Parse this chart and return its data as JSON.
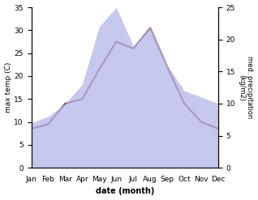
{
  "months": [
    "Jan",
    "Feb",
    "Mar",
    "Apr",
    "May",
    "Jun",
    "Jul",
    "Aug",
    "Sep",
    "Oct",
    "Nov",
    "Dec"
  ],
  "temp_max": [
    8.5,
    9.5,
    14.0,
    15.0,
    21.5,
    27.5,
    26.0,
    30.5,
    22.0,
    14.0,
    10.0,
    8.5
  ],
  "precipitation": [
    7.0,
    8.0,
    10.0,
    13.0,
    22.0,
    25.0,
    19.0,
    22.0,
    16.0,
    12.0,
    11.0,
    10.0
  ],
  "temp_color": "#993344",
  "precip_fill_color": "#b0b8e8",
  "precip_fill_alpha": 0.75,
  "xlabel": "date (month)",
  "ylabel_left": "max temp (C)",
  "ylabel_right": "med. precipitation\n(kg/m2)",
  "ylim_left": [
    0,
    35
  ],
  "ylim_right": [
    0,
    25
  ],
  "yticks_left": [
    0,
    5,
    10,
    15,
    20,
    25,
    30,
    35
  ],
  "yticks_right": [
    0,
    5,
    10,
    15,
    20,
    25
  ],
  "bg_color": "#ffffff"
}
